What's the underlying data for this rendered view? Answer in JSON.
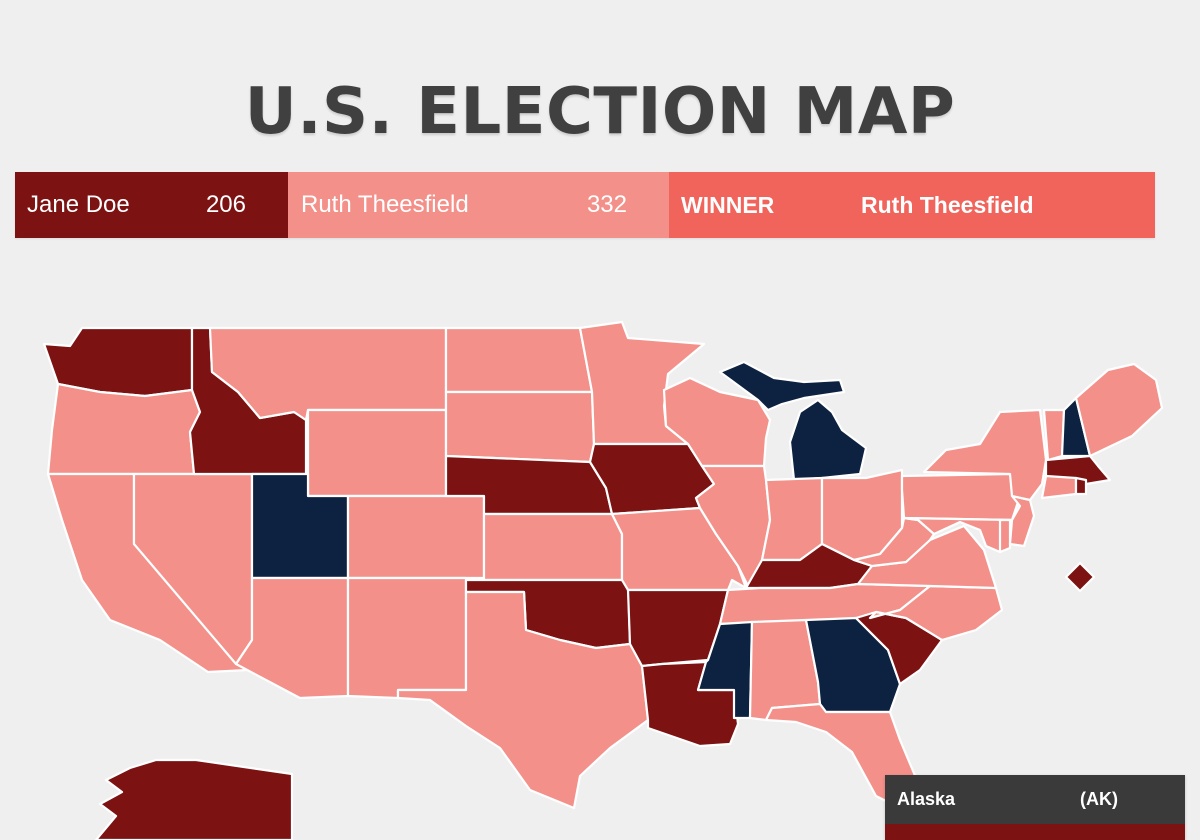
{
  "title": "U.S. ELECTION MAP",
  "candidates": [
    {
      "name": "Jane Doe",
      "votes": "206",
      "color": "#7d1212"
    },
    {
      "name": "Ruth Theesfield",
      "votes": "332",
      "color": "#f4908a"
    }
  ],
  "winner": {
    "label": "WINNER",
    "name": "Ruth Theesfield",
    "color": "#f1645b"
  },
  "colors": {
    "jane_doe": "#7d1212",
    "ruth_theesfield": "#f4908a",
    "other": "#0d2240",
    "background": "#efefef"
  },
  "states": {
    "WA": "jane_doe",
    "OR": "ruth_theesfield",
    "CA": "ruth_theesfield",
    "NV": "ruth_theesfield",
    "ID": "jane_doe",
    "MT": "ruth_theesfield",
    "WY": "ruth_theesfield",
    "UT": "other",
    "AZ": "ruth_theesfield",
    "CO": "ruth_theesfield",
    "NM": "ruth_theesfield",
    "ND": "ruth_theesfield",
    "SD": "ruth_theesfield",
    "NE": "jane_doe",
    "KS": "ruth_theesfield",
    "OK": "jane_doe",
    "TX": "ruth_theesfield",
    "MN": "ruth_theesfield",
    "IA": "jane_doe",
    "MO": "ruth_theesfield",
    "AR": "jane_doe",
    "LA": "jane_doe",
    "WI": "ruth_theesfield",
    "IL": "ruth_theesfield",
    "MI": "other",
    "IN": "ruth_theesfield",
    "OH": "ruth_theesfield",
    "KY": "jane_doe",
    "TN": "ruth_theesfield",
    "MS": "other",
    "AL": "ruth_theesfield",
    "GA": "other",
    "FL": "ruth_theesfield",
    "SC": "jane_doe",
    "NC": "ruth_theesfield",
    "VA": "ruth_theesfield",
    "WV": "ruth_theesfield",
    "PA": "ruth_theesfield",
    "NY": "ruth_theesfield",
    "VT": "ruth_theesfield",
    "NH": "other",
    "ME": "ruth_theesfield",
    "MA": "jane_doe",
    "CT": "ruth_theesfield",
    "RI": "jane_doe",
    "NJ": "ruth_theesfield",
    "DE": "ruth_theesfield",
    "MD": "ruth_theesfield",
    "DC": "jane_doe",
    "AK": "jane_doe"
  },
  "tooltip": {
    "state_name": "Alaska",
    "state_abbr": "(AK)"
  }
}
